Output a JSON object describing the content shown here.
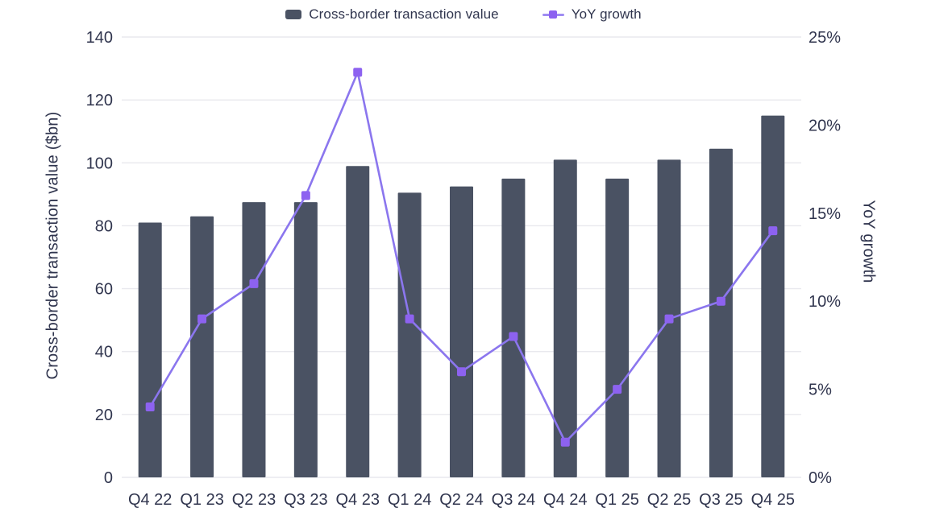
{
  "legend": {
    "items": [
      {
        "label": "Cross-border transaction value",
        "shape": "square",
        "color": "#4a5263"
      },
      {
        "label": "YoY growth",
        "shape": "line-square-marker",
        "color": "#8d62f0",
        "line_color": "#9f8cf2"
      }
    ]
  },
  "chart_data": {
    "type": "bar",
    "combo": "bar+line",
    "categories": [
      "Q4 22",
      "Q1 23",
      "Q2 23",
      "Q3 23",
      "Q4 23",
      "Q1 24",
      "Q2 24",
      "Q3 24",
      "Q4 24",
      "Q1 25",
      "Q2 25",
      "Q3 25",
      "Q4 25"
    ],
    "series": [
      {
        "name": "Cross-border transaction value",
        "type": "bar",
        "axis": "left",
        "unit": "$bn",
        "color": "#4a5263",
        "values": [
          81,
          83,
          87.5,
          87.5,
          99,
          90.5,
          92.5,
          95,
          101,
          95,
          101,
          104.5,
          115
        ]
      },
      {
        "name": "YoY growth",
        "type": "line",
        "axis": "right",
        "unit": "%",
        "color": "#8b76ee",
        "marker_color": "#8d62f0",
        "marker_shape": "square",
        "values": [
          4,
          9,
          11,
          16,
          23,
          9,
          6,
          8,
          2,
          5,
          9,
          10,
          14
        ]
      }
    ],
    "left_axis": {
      "label": "Cross-border transaction value ($bn)",
      "min": 0,
      "max": 140,
      "tick_step": 20,
      "tick_labels": [
        "0",
        "20",
        "40",
        "60",
        "80",
        "100",
        "120",
        "140"
      ]
    },
    "right_axis": {
      "label": "YoY growth",
      "min": 0,
      "max": 25,
      "tick_step": 5,
      "tick_labels": [
        "0%",
        "5%",
        "10%",
        "15%",
        "20%",
        "25%"
      ]
    },
    "grid": true,
    "legend_position": "top",
    "colors": {
      "background": "#ffffff",
      "text": "#30354e",
      "grid": "#e9e9ee"
    }
  }
}
